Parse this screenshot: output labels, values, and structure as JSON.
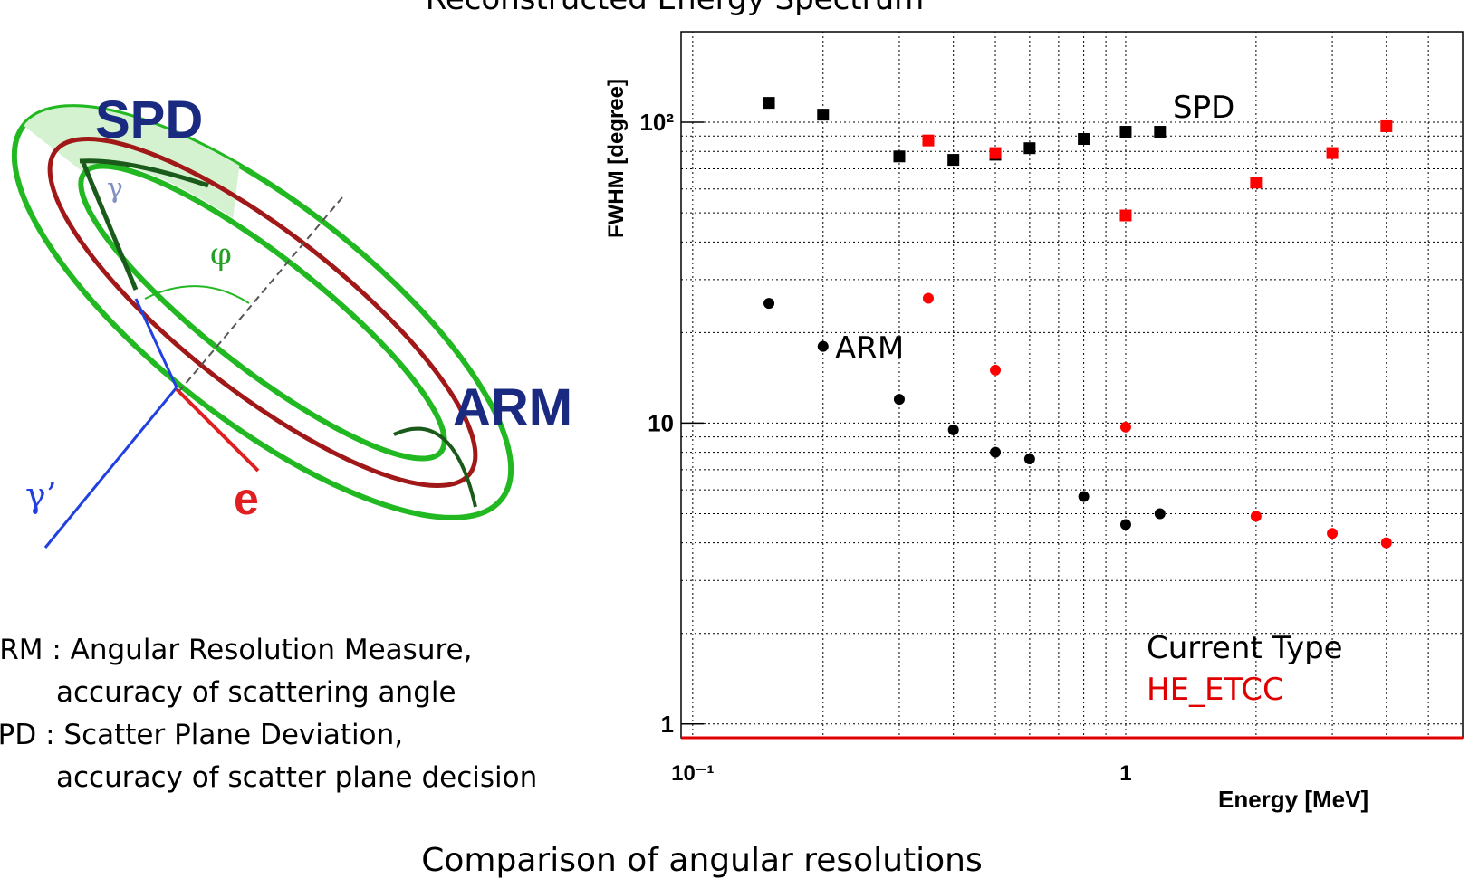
{
  "chart_data": {
    "type": "scatter",
    "title": "Reconstructed Energy Spectrum",
    "xlabel": "Energy [MeV]",
    "ylabel": "FWHM [degree]",
    "log_x": true,
    "log_y": true,
    "grid": true,
    "xlim": [
      0.094,
      6
    ],
    "ylim": [
      0.9,
      200
    ],
    "xticks": [
      {
        "value": 0.1,
        "label": "10⁻¹"
      },
      1
    ],
    "yticks": [
      1,
      10,
      {
        "value": 100,
        "label": "10²"
      }
    ],
    "xminor": [
      0.2,
      0.3,
      0.4,
      0.5,
      0.6,
      0.7,
      0.8,
      0.9,
      2,
      3,
      4,
      5
    ],
    "yminor": [
      2,
      3,
      4,
      5,
      6,
      7,
      8,
      9,
      20,
      30,
      40,
      50,
      60,
      70,
      80,
      90
    ],
    "series": [
      {
        "color": "#000000",
        "marker": "square",
        "x": [
          0.15,
          0.2,
          0.3,
          0.4,
          0.5,
          0.6,
          0.8,
          1.0,
          1.2
        ],
        "values": [
          116,
          106,
          77,
          75,
          78,
          82,
          88,
          93,
          93
        ]
      },
      {
        "color": "#ff0000",
        "marker": "square",
        "x": [
          0.35,
          0.5,
          1.0,
          2,
          3,
          4
        ],
        "values": [
          87,
          79,
          49,
          63,
          79,
          97
        ]
      },
      {
        "color": "#000000",
        "marker": "circle",
        "x": [
          0.15,
          0.2,
          0.3,
          0.4,
          0.5,
          0.6,
          0.8,
          1.0,
          1.2
        ],
        "values": [
          25,
          18,
          12,
          9.5,
          8.0,
          7.6,
          5.7,
          4.6,
          5.0
        ]
      },
      {
        "color": "#ff0000",
        "marker": "circle",
        "x": [
          0.35,
          0.5,
          1.0,
          2,
          3,
          4
        ],
        "values": [
          26,
          15,
          9.7,
          4.9,
          4.3,
          4.0
        ]
      }
    ],
    "annotations": [
      "SPD",
      "ARM",
      "Current Type",
      "HE_ETCC"
    ]
  },
  "diagram": {
    "labels": [
      "SPD",
      "ARM",
      "γ",
      "φ",
      "γ’",
      "e"
    ]
  },
  "notes": [
    "ARM : Angular Resolution Measure,",
    "accuracy of scattering angle",
    "SPD : Scatter Plane Deviation,",
    "accuracy of scatter plane decision"
  ],
  "caption": "Comparison of angular resolutions"
}
